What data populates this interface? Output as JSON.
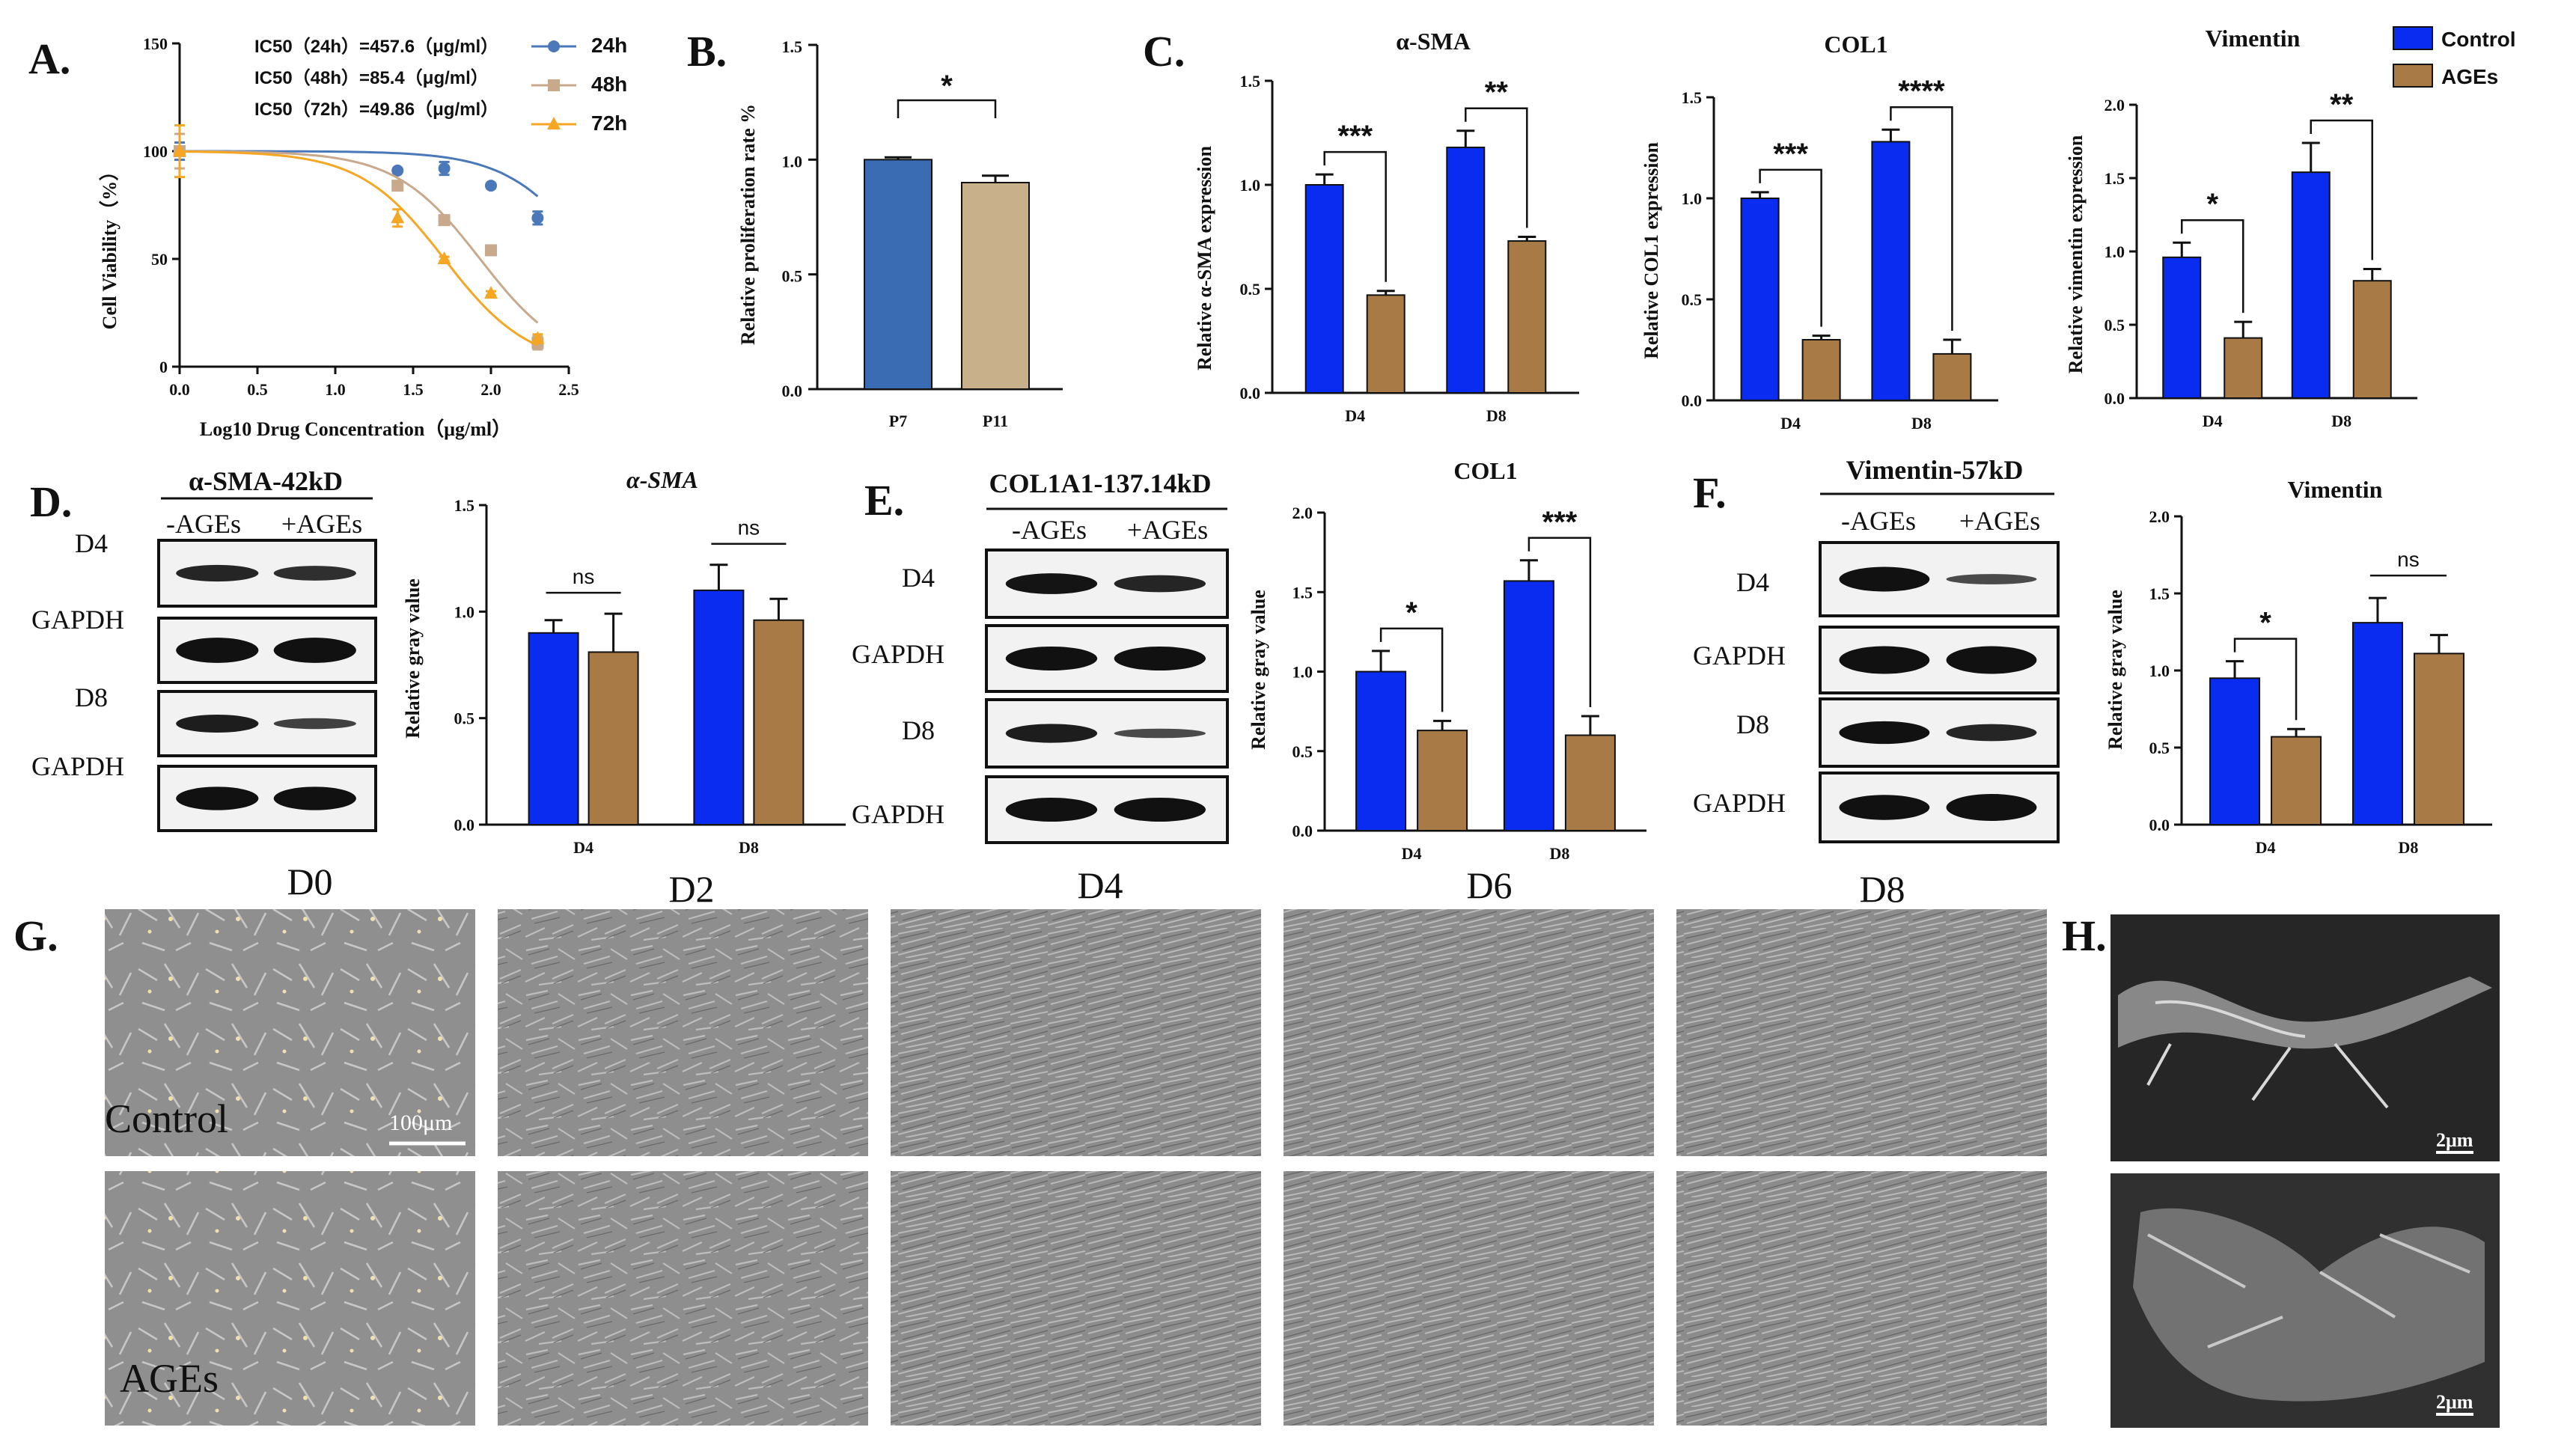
{
  "panel_letters": {
    "A": "A.",
    "B": "B.",
    "C": "C.",
    "D": "D.",
    "E": "E.",
    "F": "F.",
    "G": "G.",
    "H": "H."
  },
  "chart_data": [
    {
      "id": "A",
      "type": "scatter",
      "xlabel": "Log10 Drug Concentration（μg/ml）",
      "ylabel": "Cell Viability（%）",
      "xlim": [
        0,
        2.5
      ],
      "ylim": [
        0,
        150
      ],
      "xticks": [
        "0.0",
        "0.5",
        "1.0",
        "1.5",
        "2.0",
        "2.5"
      ],
      "yticks": [
        "0",
        "50",
        "100",
        "150"
      ],
      "annotations": [
        "IC50（24h）=457.6（μg/ml）",
        "IC50（48h）=85.4（μg/ml）",
        "IC50（72h）=49.86（μg/ml）"
      ],
      "series": [
        {
          "name": "24h",
          "color": "#4a78b8",
          "marker": "circle",
          "x": [
            0,
            1.4,
            1.7,
            2.0,
            2.3
          ],
          "y": [
            100,
            91,
            92,
            84,
            69
          ],
          "err": [
            4,
            1,
            3,
            1,
            3
          ],
          "ic50_log": 2.66
        },
        {
          "name": "48h",
          "color": "#c8a98c",
          "marker": "square",
          "x": [
            0,
            1.4,
            1.7,
            2.0,
            2.3
          ],
          "y": [
            100,
            84,
            68,
            54,
            11
          ],
          "err": [
            8,
            2,
            1,
            1,
            3
          ],
          "ic50_log": 1.93
        },
        {
          "name": "72h",
          "color": "#f5a623",
          "marker": "triangle",
          "x": [
            0,
            1.4,
            1.7,
            2.0,
            2.3
          ],
          "y": [
            100,
            69,
            50,
            34,
            13
          ],
          "err": [
            12,
            4,
            1,
            1,
            2
          ],
          "ic50_log": 1.7
        }
      ]
    },
    {
      "id": "B",
      "type": "bar",
      "ylabel": "Relative proliferation rate %",
      "categories": [
        "P7",
        "P11"
      ],
      "values": [
        1.0,
        0.9
      ],
      "errors": [
        0.01,
        0.03
      ],
      "colors": [
        "#3a6cb3",
        "#c8b08a"
      ],
      "ylim": [
        0,
        1.5
      ],
      "yticks": [
        "0.0",
        "0.5",
        "1.0",
        "1.5"
      ],
      "significance": "*"
    },
    {
      "id": "C1",
      "type": "bar",
      "title": "α-SMA",
      "ylabel": "Relative α-SMA expression",
      "categories": [
        "D4",
        "D8"
      ],
      "series": [
        {
          "name": "Control",
          "values": [
            1.0,
            1.18
          ],
          "errors": [
            0.05,
            0.08
          ]
        },
        {
          "name": "AGEs",
          "values": [
            0.47,
            0.73
          ],
          "errors": [
            0.02,
            0.02
          ]
        }
      ],
      "ylim": [
        0,
        1.5
      ],
      "yticks": [
        "0.0",
        "0.5",
        "1.0",
        "1.5"
      ],
      "significance": [
        "***",
        "**"
      ]
    },
    {
      "id": "C2",
      "type": "bar",
      "title": "COL1",
      "ylabel": "Relative COL1 expression",
      "categories": [
        "D4",
        "D8"
      ],
      "series": [
        {
          "name": "Control",
          "values": [
            1.0,
            1.28
          ],
          "errors": [
            0.03,
            0.06
          ]
        },
        {
          "name": "AGEs",
          "values": [
            0.3,
            0.23
          ],
          "errors": [
            0.02,
            0.07
          ]
        }
      ],
      "ylim": [
        0,
        1.5
      ],
      "yticks": [
        "0.0",
        "0.5",
        "1.0",
        "1.5"
      ],
      "significance": [
        "***",
        "****"
      ]
    },
    {
      "id": "C3",
      "type": "bar",
      "title": "Vimentin",
      "ylabel": "Relative vimentin expression",
      "categories": [
        "D4",
        "D8"
      ],
      "series": [
        {
          "name": "Control",
          "values": [
            0.96,
            1.54
          ],
          "errors": [
            0.1,
            0.2
          ]
        },
        {
          "name": "AGEs",
          "values": [
            0.41,
            0.8
          ],
          "errors": [
            0.11,
            0.08
          ]
        }
      ],
      "ylim": [
        0,
        2.0
      ],
      "yticks": [
        "0.0",
        "0.5",
        "1.0",
        "1.5",
        "2.0"
      ],
      "significance": [
        "*",
        "**"
      ],
      "legend": [
        "Control",
        "AGEs"
      ]
    },
    {
      "id": "D",
      "type": "bar",
      "title": "α-SMA",
      "ylabel": "Relative gray value",
      "categories": [
        "D4",
        "D8"
      ],
      "series": [
        {
          "name": "Control",
          "values": [
            0.9,
            1.1
          ],
          "errors": [
            0.06,
            0.12
          ]
        },
        {
          "name": "AGEs",
          "values": [
            0.81,
            0.96
          ],
          "errors": [
            0.18,
            0.1
          ]
        }
      ],
      "ylim": [
        0,
        1.5
      ],
      "yticks": [
        "0.0",
        "0.5",
        "1.0",
        "1.5"
      ],
      "significance": [
        "ns",
        "ns"
      ]
    },
    {
      "id": "E",
      "type": "bar",
      "title": "COL1",
      "ylabel": "Relative gray value",
      "categories": [
        "D4",
        "D8"
      ],
      "series": [
        {
          "name": "Control",
          "values": [
            1.0,
            1.57
          ],
          "errors": [
            0.13,
            0.13
          ]
        },
        {
          "name": "AGEs",
          "values": [
            0.63,
            0.6
          ],
          "errors": [
            0.06,
            0.12
          ]
        }
      ],
      "ylim": [
        0,
        2.0
      ],
      "yticks": [
        "0.0",
        "0.5",
        "1.0",
        "1.5",
        "2.0"
      ],
      "significance": [
        "*",
        "***"
      ]
    },
    {
      "id": "F",
      "type": "bar",
      "title": "Vimentin",
      "ylabel": "Relative gray value",
      "categories": [
        "D4",
        "D8"
      ],
      "series": [
        {
          "name": "Control",
          "values": [
            0.95,
            1.31
          ],
          "errors": [
            0.11,
            0.16
          ]
        },
        {
          "name": "AGEs",
          "values": [
            0.57,
            1.11
          ],
          "errors": [
            0.05,
            0.12
          ]
        }
      ],
      "ylim": [
        0,
        2.0
      ],
      "yticks": [
        "0.0",
        "0.5",
        "1.0",
        "1.5",
        "2.0"
      ],
      "significance": [
        "*",
        "ns"
      ]
    }
  ],
  "colors": {
    "control": "#0a2cf0",
    "ages": "#a87a45"
  },
  "blots": {
    "D": {
      "title": "α-SMA-42kD",
      "cols": [
        "-AGEs",
        "+AGEs"
      ],
      "rows": [
        "D4",
        "GAPDH",
        "D8",
        "GAPDH"
      ]
    },
    "E": {
      "title": "COL1A1-137.14kD",
      "cols": [
        "-AGEs",
        "+AGEs"
      ],
      "rows": [
        "D4",
        "GAPDH",
        "D8",
        "GAPDH"
      ]
    },
    "F": {
      "title": "Vimentin-57kD",
      "cols": [
        "-AGEs",
        "+AGEs"
      ],
      "rows": [
        "D4",
        "GAPDH",
        "D8",
        "GAPDH"
      ]
    }
  },
  "micrographs": {
    "days": [
      "D0",
      "D2",
      "D4",
      "D6",
      "D8"
    ],
    "rows": [
      "Control",
      "AGEs"
    ],
    "scale": "100μm"
  },
  "sem": {
    "scale_top": "2μm",
    "scale_bottom": "2μm"
  }
}
